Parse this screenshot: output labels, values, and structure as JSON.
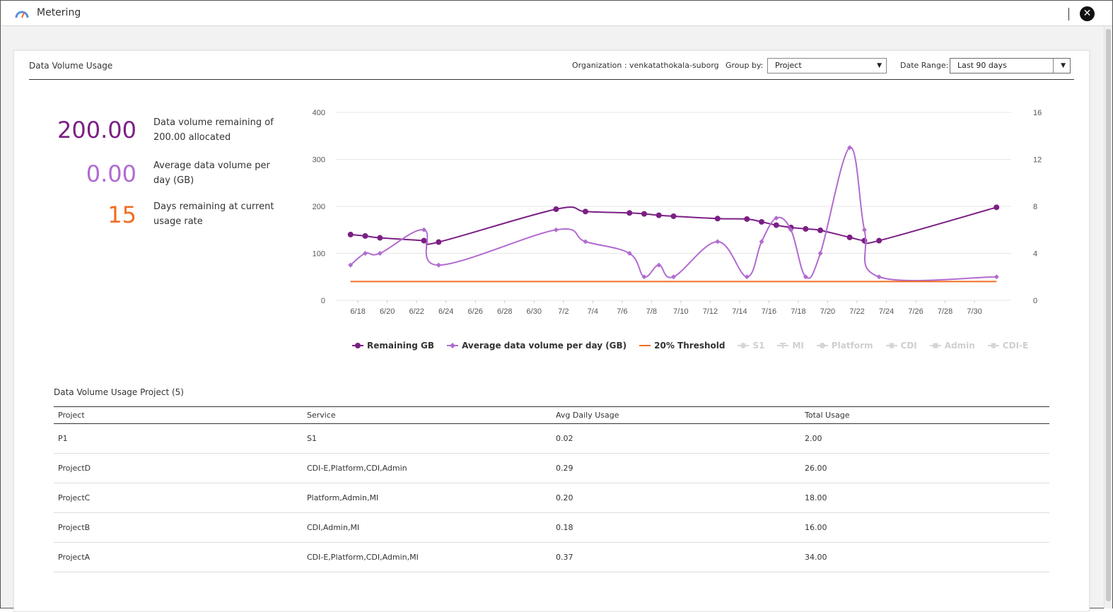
{
  "window": {
    "title": "Metering",
    "close_label": "✕"
  },
  "card": {
    "title": "Data Volume Usage",
    "organization": "Organization : venkatathokala-suborg",
    "group_by_label": "Group by:",
    "group_by_value": "Project",
    "date_range_label": "Date Range:",
    "date_range_value": "Last 90 days"
  },
  "stats": [
    {
      "value": "200.00",
      "label": "Data volume remaining of 200.00 allocated",
      "color": "#7b1f84"
    },
    {
      "value": "0.00",
      "label": "Average data volume per day (GB)",
      "color": "#b16bd0"
    },
    {
      "value": "15",
      "label": "Days remaining at current usage rate",
      "color": "#f36c21"
    }
  ],
  "chart_data": {
    "type": "line",
    "x_ticks": [
      "6/18",
      "6/20",
      "6/22",
      "6/24",
      "6/26",
      "6/28",
      "6/30",
      "7/2",
      "7/4",
      "7/6",
      "7/8",
      "7/10",
      "7/12",
      "7/14",
      "7/16",
      "7/18",
      "7/20",
      "7/22",
      "7/24",
      "7/26",
      "7/28",
      "7/30"
    ],
    "y_left": {
      "min": 0,
      "max": 400,
      "ticks": [
        "0",
        "100",
        "200",
        "300",
        "400"
      ]
    },
    "y_right": {
      "min": 0,
      "max": 16,
      "ticks": [
        "0",
        "4",
        "8",
        "12",
        "16"
      ]
    },
    "series": [
      {
        "name": "Remaining GB",
        "color": "#7b1f84",
        "marker": "circle",
        "x": [
          17.5,
          18.5,
          19.5,
          22.5,
          23.5,
          31.5,
          33.5,
          36.5,
          37.5,
          38.5,
          39.5,
          42.5,
          44.5,
          45.5,
          46.5,
          47.5,
          48.5,
          49.5,
          51.5,
          52.5,
          53.5,
          61.5
        ],
        "values": [
          140,
          137,
          133,
          127,
          124,
          194,
          189,
          186,
          184,
          181,
          179,
          174,
          173,
          167,
          160,
          155,
          152,
          149,
          134,
          127,
          127,
          198
        ]
      },
      {
        "name": "Average data volume per day (GB)",
        "color": "#b16bd0",
        "marker": "diamond",
        "x": [
          17.5,
          18.5,
          19.5,
          22.5,
          23.5,
          31.5,
          33.5,
          36.5,
          37.5,
          38.5,
          39.5,
          42.5,
          44.5,
          45.5,
          46.5,
          47.5,
          48.5,
          49.5,
          51.5,
          52.5,
          53.5,
          61.5
        ],
        "values": [
          3,
          4,
          4,
          6,
          3,
          6,
          5,
          4,
          2,
          3,
          2,
          5,
          2,
          5,
          7,
          6,
          2,
          4,
          13,
          6,
          2,
          2
        ]
      },
      {
        "name": "20% Threshold",
        "color": "#f36c21",
        "marker": "none",
        "x": [
          17.5,
          61.5
        ],
        "values": [
          40,
          40
        ]
      }
    ],
    "inactive_series": [
      {
        "name": "S1",
        "marker": "star"
      },
      {
        "name": "MI",
        "marker": "tee"
      },
      {
        "name": "Platform",
        "marker": "circle"
      },
      {
        "name": "CDI",
        "marker": "cross"
      },
      {
        "name": "Admin",
        "marker": "square"
      },
      {
        "name": "CDI-E",
        "marker": "star"
      }
    ]
  },
  "table": {
    "title": "Data Volume Usage Project (5)",
    "columns": [
      "Project",
      "Service",
      "Avg Daily Usage",
      "Total Usage"
    ],
    "rows": [
      [
        "P1",
        "S1",
        "0.02",
        "2.00"
      ],
      [
        "ProjectD",
        "CDI-E,Platform,CDI,Admin",
        "0.29",
        "26.00"
      ],
      [
        "ProjectC",
        "Platform,Admin,MI",
        "0.20",
        "18.00"
      ],
      [
        "ProjectB",
        "CDI,Admin,MI",
        "0.18",
        "16.00"
      ],
      [
        "ProjectA",
        "CDI-E,Platform,CDI,Admin,MI",
        "0.37",
        "34.00"
      ]
    ]
  }
}
